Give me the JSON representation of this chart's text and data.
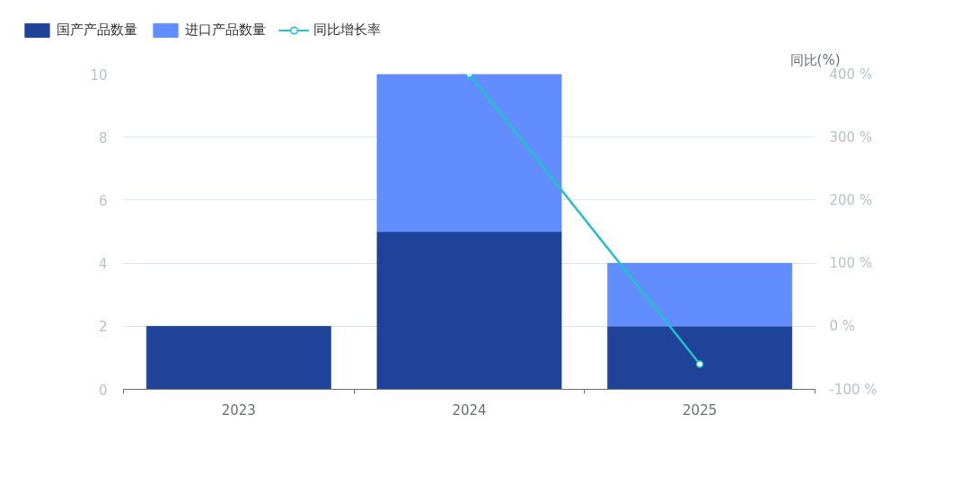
{
  "chart_data": {
    "type": "bar",
    "stacked": true,
    "categories": [
      "2023",
      "2024",
      "2025"
    ],
    "series": [
      {
        "name": "国产产品数量",
        "color": "#1f4398",
        "values": [
          2,
          5,
          2
        ]
      },
      {
        "name": "进口产品数量",
        "color": "#628dff",
        "values": [
          0,
          5,
          2
        ]
      },
      {
        "name": "同比增长率",
        "type": "line",
        "axis": "y2",
        "color": "#1fc3c6",
        "marker": "circle",
        "values": [
          null,
          400,
          -60
        ]
      }
    ],
    "ylim": [
      0,
      10
    ],
    "yticks": [
      0,
      2,
      4,
      6,
      8,
      10
    ],
    "y2lim": [
      -100,
      400
    ],
    "y2ticks": [
      {
        "value": -100,
        "label": "-100 %"
      },
      {
        "value": 0,
        "label": "0 %"
      },
      {
        "value": 100,
        "label": "100 %"
      },
      {
        "value": 200,
        "label": "200 %"
      },
      {
        "value": 300,
        "label": "300 %"
      },
      {
        "value": 400,
        "label": "400 %"
      }
    ],
    "y2label": "同比(%)",
    "grid": "y",
    "legend": "top left"
  }
}
